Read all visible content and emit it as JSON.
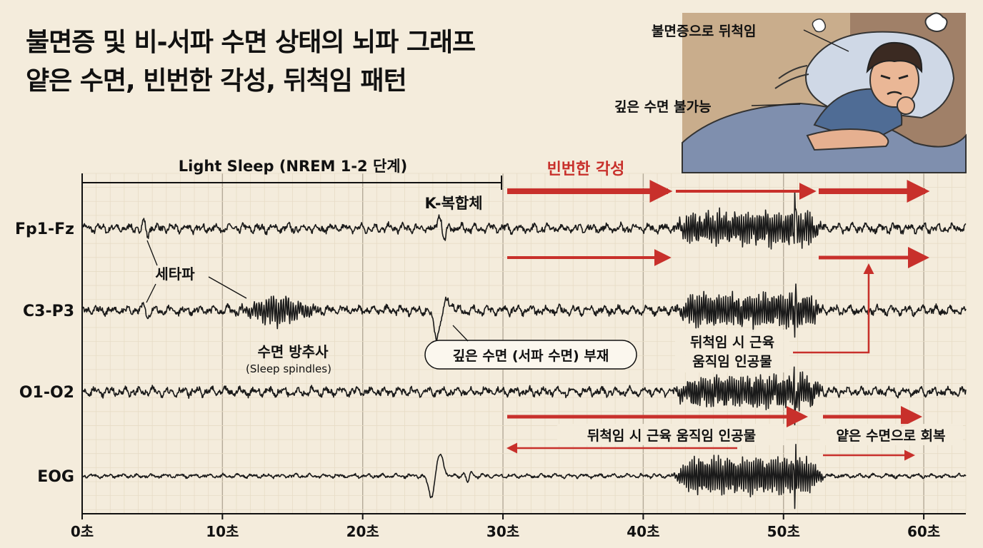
{
  "title_line1": "불면증 및 비-서파 수면 상태의 뇌파 그래프",
  "title_line2": "얕은 수면, 빈번한 각성, 뒤척임 패턴",
  "illustration": {
    "label_tossing": "불면증으로 뒤척임",
    "label_no_deep": "깊은 수면 불가능"
  },
  "chart_data": {
    "type": "line",
    "x_unit": "초",
    "xlim": [
      0,
      63
    ],
    "x_ticks": [
      "0초",
      "10초",
      "20초",
      "30초",
      "40초",
      "50초",
      "60초"
    ],
    "channels": [
      "Fp1-Fz",
      "C3-P3",
      "O1-O2",
      "EOG"
    ],
    "grid": true,
    "annotations": {
      "light_sleep": "Light Sleep (NREM 1-2 단계)",
      "frequent_waking": "빈번한 각성",
      "k_complex": "K-복합체",
      "theta": "세타파",
      "spindles": "수면 방추사",
      "spindles_en": "(Sleep spindles)",
      "no_deep_sleep": "깊은 수면 (서파 수면) 부재",
      "artifact_line1": "뒤척임 시 근육",
      "artifact_line2": "움직임 인공물",
      "artifact_full": "뒤척임 시 근육 움직임 인공물",
      "return_light": "얕은 수면으로 회복"
    },
    "colors": {
      "trace": "#1a1a1a",
      "accent": "#c8302b",
      "grid_minor": "#e7dcc6",
      "grid_major": "#b4aa98"
    }
  }
}
